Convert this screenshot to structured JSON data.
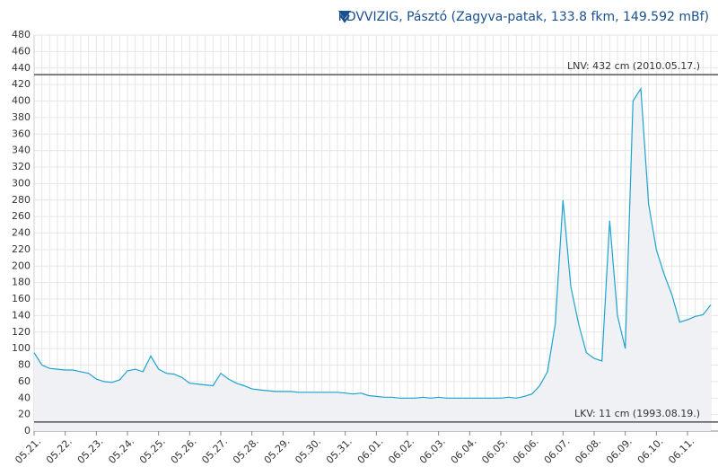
{
  "chart_data": {
    "type": "line",
    "title": "KDVVIZIG, Pásztó (Zagyva-patak, 133.8 fkm, 149.592 mBf)",
    "categories": [
      "05.21.",
      null,
      null,
      null,
      "05.22.",
      null,
      null,
      null,
      "05.23.",
      null,
      null,
      null,
      "05.24.",
      null,
      null,
      null,
      "05.25.",
      null,
      null,
      null,
      "05.26.",
      null,
      null,
      null,
      "05.27.",
      null,
      null,
      null,
      "05.28.",
      null,
      null,
      null,
      "05.29.",
      null,
      null,
      null,
      "05.30.",
      null,
      null,
      null,
      "05.31.",
      null,
      null,
      null,
      "06.01.",
      null,
      null,
      null,
      "06.02.",
      null,
      null,
      null,
      "06.03.",
      null,
      null,
      null,
      "06.04.",
      null,
      null,
      null,
      "06.05.",
      null,
      null,
      null,
      "06.06.",
      null,
      null,
      null,
      "06.07.",
      null,
      null,
      null,
      "06.08.",
      null,
      null,
      null,
      "06.09.",
      null,
      null,
      null,
      "06.10.",
      null,
      null,
      null,
      "06.11.",
      null,
      null,
      null
    ],
    "series": [
      {
        "color": "#1ea3cf",
        "fill": "#eff1f5",
        "values": [
          95,
          80,
          76,
          75,
          74,
          74,
          72,
          70,
          63,
          60,
          59,
          62,
          73,
          75,
          72,
          91,
          75,
          70,
          69,
          65,
          58,
          57,
          56,
          55,
          70,
          63,
          58,
          55,
          51,
          50,
          49,
          48,
          48,
          48,
          47,
          47,
          47,
          47,
          47,
          47,
          46,
          45,
          46,
          43,
          42,
          41,
          41,
          40,
          40,
          40,
          41,
          40,
          41,
          40,
          40,
          40,
          40,
          40,
          40,
          40,
          40,
          41,
          40,
          42,
          45,
          55,
          72,
          130,
          280,
          175,
          130,
          95,
          88,
          85,
          255,
          140,
          100,
          400,
          415,
          275,
          220,
          190,
          165,
          132,
          135,
          139,
          141,
          153
        ]
      }
    ],
    "ylim": [
      0,
      480
    ],
    "yticks": [
      0,
      20,
      40,
      60,
      80,
      100,
      120,
      140,
      160,
      180,
      200,
      220,
      240,
      260,
      280,
      300,
      320,
      340,
      360,
      380,
      400,
      420,
      440,
      460,
      480
    ],
    "grid": true,
    "annotations": [
      {
        "text": "LNV: 432 cm (2010.05.17.)",
        "value": 432,
        "color": "#555555"
      },
      {
        "text": "LKV: 11 cm (1993.08.19.)",
        "value": 11,
        "color": "#555555"
      }
    ]
  }
}
